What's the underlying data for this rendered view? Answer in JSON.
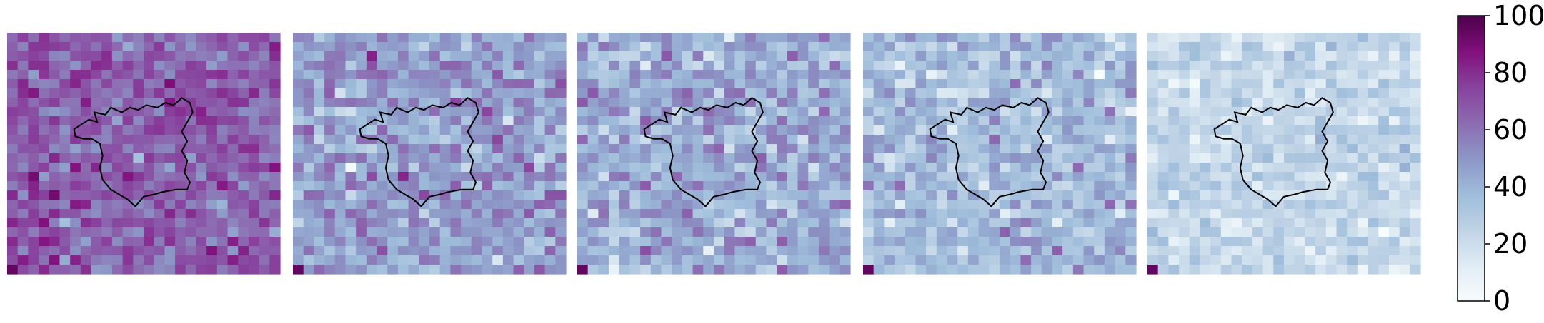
{
  "chart_data": {
    "type": "heatmap",
    "panel_count": 5,
    "grid_cells": 26,
    "panels": [
      {
        "mean": 66,
        "spread": 9
      },
      {
        "mean": 47,
        "spread": 11
      },
      {
        "mean": 42,
        "spread": 11
      },
      {
        "mean": 36,
        "spread": 10
      },
      {
        "mean": 23,
        "spread": 7
      }
    ],
    "colorbar": {
      "min": 0,
      "max": 100,
      "ticks": [
        "0",
        "20",
        "40",
        "60",
        "80",
        "100"
      ],
      "colormap": [
        "#f7fcfd",
        "#e0ecf4",
        "#bfd3e6",
        "#9ebcda",
        "#8c96c6",
        "#8c6bb1",
        "#88419d",
        "#810f7c",
        "#4d004b"
      ]
    },
    "grid": false,
    "outline_color": "#000000"
  }
}
